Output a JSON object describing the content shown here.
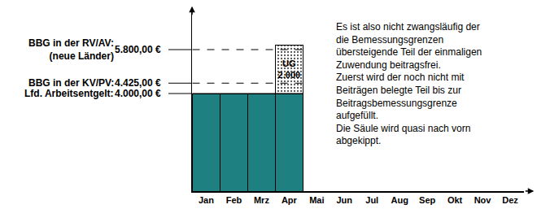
{
  "chart_data": {
    "type": "bar",
    "stacked": true,
    "categories": [
      "Jan",
      "Feb",
      "Mrz",
      "Apr",
      "Mai",
      "Jun",
      "Jul",
      "Aug",
      "Sep",
      "Okt",
      "Nov",
      "Dez"
    ],
    "series": [
      {
        "color": "#1e8080",
        "values": [
          4000,
          4000,
          4000,
          4000,
          null,
          null,
          null,
          null,
          null,
          null,
          null,
          null
        ]
      },
      {
        "color": "#c8c8c8",
        "marker": "dotted",
        "data_labels": true,
        "values": [
          null,
          null,
          null,
          2000,
          null,
          null,
          null,
          null,
          null,
          null,
          null,
          null
        ],
        "value_labels": [
          null,
          null,
          null,
          "UG\n2.000",
          null,
          null,
          null,
          null,
          null,
          null,
          null,
          null
        ]
      }
    ],
    "ylim": [
      0,
      7500
    ],
    "yticks": [],
    "tick_labels": "x",
    "grid": false,
    "reference_lines": [
      {
        "value": 5800,
        "label": "BBG in der RV/AV:\n(neue Länder)",
        "value_label": "5.800,00 €",
        "line_style": "dashed"
      },
      {
        "value": 4425,
        "label": "BBG in der KV/PV:",
        "value_label": "4.425,00 €",
        "line_style": "dashed"
      },
      {
        "value": 4000,
        "label": "Lfd. Arbeitsentgelt:",
        "value_label": "4.000,00 €",
        "line_style": "solid"
      }
    ],
    "annotation": [
      "Es ist also nicht zwangsläufig der",
      "die Bemessungsgrenzen",
      "übersteigende Teil der einmaligen",
      "Zuwendung beitragsfrei.",
      "Zuerst wird der noch nicht mit",
      "Beiträgen belegte Teil bis zur",
      "Beitragsbemessungsgrenze",
      "aufgefüllt.",
      "Die Säule wird quasi nach vorn",
      "abgekippt."
    ]
  }
}
